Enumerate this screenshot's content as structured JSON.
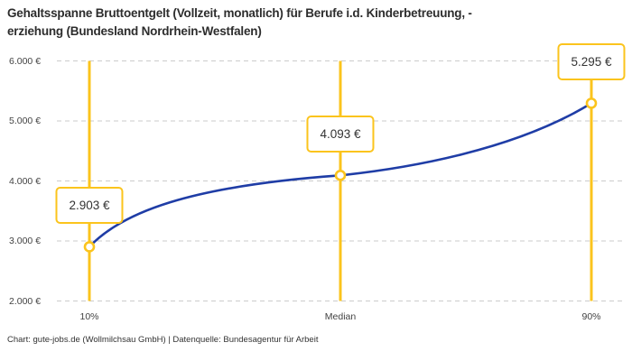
{
  "title": {
    "line1": "Gehaltsspanne Bruttoentgelt (Vollzeit, monatlich) für Berufe i.d. Kinderbetreuung, -",
    "line2": "erziehung (Bundesland Nordrhein-Westfalen)"
  },
  "footer": {
    "text": "Chart: gute-jobs.de (Wollmilchsau GmbH) | Datenquelle: Bundesagentur für Arbeit"
  },
  "chart_data": {
    "type": "line",
    "title": "Gehaltsspanne Bruttoentgelt (Vollzeit, monatlich) für Berufe i.d. Kinderbetreuung, -erziehung (Bundesland Nordrhein-Westfalen)",
    "categories": [
      "10%",
      "Median",
      "90%"
    ],
    "values": [
      2903,
      4093,
      5295
    ],
    "point_labels": [
      "2.903 €",
      "4.093 €",
      "5.295 €"
    ],
    "ylim": [
      2000,
      6000
    ],
    "yticks": [
      2000,
      3000,
      4000,
      5000,
      6000
    ],
    "ytick_labels": [
      "2.000 €",
      "3.000 €",
      "4.000 €",
      "5.000 €",
      "6.000 €"
    ],
    "xlabel": "",
    "ylabel": "",
    "grid": "horizontal-dashed",
    "legend": "none",
    "colors": {
      "line": "#1F3DA6",
      "marker": "#FBC41D",
      "grid": "#CBCBCB",
      "background": "#FFFFFF"
    }
  }
}
